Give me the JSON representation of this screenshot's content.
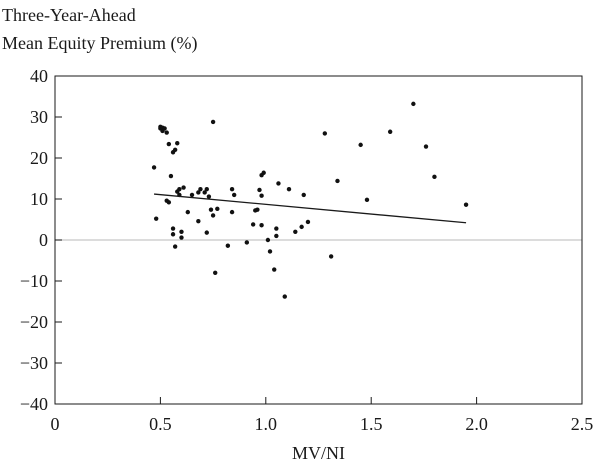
{
  "chart_data": {
    "type": "scatter",
    "ylabel_lines": [
      "Three-Year-Ahead",
      "Mean Equity Premium (%)"
    ],
    "xlabel": "MV/NI",
    "xlim": [
      0,
      2.5
    ],
    "ylim": [
      -40,
      40
    ],
    "xticks": [
      0,
      0.5,
      1.0,
      1.5,
      2.0,
      2.5
    ],
    "xtick_labels": [
      "0",
      "0.5",
      "1.0",
      "1.5",
      "2.0",
      "2.5"
    ],
    "yticks": [
      40,
      30,
      20,
      10,
      0,
      -10,
      -20,
      -30,
      -40
    ],
    "ytick_labels": [
      "40",
      "30",
      "20",
      "10",
      "0",
      "−10",
      "−20",
      "−30",
      "−40"
    ],
    "zero_line": true,
    "grid": false,
    "trendline": {
      "x": [
        0.47,
        1.95
      ],
      "y": [
        11.2,
        4.2
      ]
    },
    "points": [
      [
        0.47,
        17.7
      ],
      [
        0.48,
        5.2
      ],
      [
        0.5,
        27.2
      ],
      [
        0.5,
        27.6
      ],
      [
        0.51,
        26.6
      ],
      [
        0.51,
        27.4
      ],
      [
        0.52,
        27.2
      ],
      [
        0.53,
        26.2
      ],
      [
        0.53,
        9.6
      ],
      [
        0.54,
        23.4
      ],
      [
        0.54,
        9.2
      ],
      [
        0.55,
        15.6
      ],
      [
        0.56,
        21.4
      ],
      [
        0.56,
        2.8
      ],
      [
        0.56,
        1.4
      ],
      [
        0.57,
        22.0
      ],
      [
        0.57,
        -1.6
      ],
      [
        0.58,
        23.6
      ],
      [
        0.58,
        11.8
      ],
      [
        0.59,
        12.4
      ],
      [
        0.59,
        11.0
      ],
      [
        0.6,
        0.6
      ],
      [
        0.6,
        2.0
      ],
      [
        0.61,
        12.8
      ],
      [
        0.63,
        6.8
      ],
      [
        0.65,
        11.0
      ],
      [
        0.68,
        4.6
      ],
      [
        0.68,
        11.6
      ],
      [
        0.69,
        12.4
      ],
      [
        0.71,
        11.6
      ],
      [
        0.72,
        12.4
      ],
      [
        0.72,
        1.8
      ],
      [
        0.73,
        10.6
      ],
      [
        0.74,
        7.4
      ],
      [
        0.75,
        6.0
      ],
      [
        0.75,
        28.8
      ],
      [
        0.76,
        -8.0
      ],
      [
        0.77,
        7.6
      ],
      [
        0.82,
        -1.4
      ],
      [
        0.84,
        12.4
      ],
      [
        0.84,
        6.8
      ],
      [
        0.85,
        11.0
      ],
      [
        0.91,
        -0.6
      ],
      [
        0.94,
        3.8
      ],
      [
        0.95,
        7.2
      ],
      [
        0.96,
        7.4
      ],
      [
        0.97,
        12.2
      ],
      [
        0.98,
        3.6
      ],
      [
        0.98,
        15.8
      ],
      [
        0.98,
        10.8
      ],
      [
        0.99,
        16.4
      ],
      [
        1.01,
        0.0
      ],
      [
        1.02,
        -2.8
      ],
      [
        1.04,
        -7.2
      ],
      [
        1.05,
        1.0
      ],
      [
        1.05,
        2.8
      ],
      [
        1.06,
        13.8
      ],
      [
        1.09,
        -13.8
      ],
      [
        1.11,
        12.4
      ],
      [
        1.14,
        2.0
      ],
      [
        1.17,
        3.2
      ],
      [
        1.18,
        11.0
      ],
      [
        1.2,
        4.4
      ],
      [
        1.28,
        26.0
      ],
      [
        1.31,
        -4.0
      ],
      [
        1.34,
        14.4
      ],
      [
        1.45,
        23.2
      ],
      [
        1.48,
        9.8
      ],
      [
        1.59,
        26.4
      ],
      [
        1.7,
        33.2
      ],
      [
        1.76,
        22.8
      ],
      [
        1.8,
        15.4
      ],
      [
        1.95,
        8.6
      ]
    ]
  }
}
